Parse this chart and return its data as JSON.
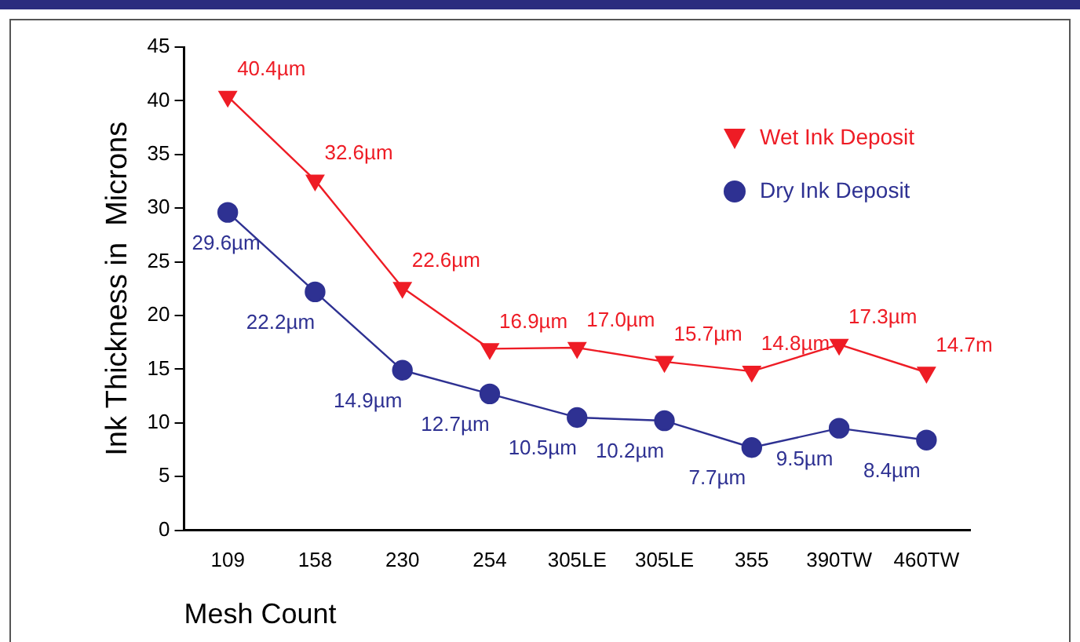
{
  "chart_data": {
    "type": "line",
    "xlabel": "Mesh Count",
    "ylabel": "Ink Thickness in  Microns",
    "categories": [
      "109",
      "158",
      "230",
      "254",
      "305LE",
      "305LE",
      "355",
      "390TW",
      "460TW"
    ],
    "ylim": [
      0,
      45
    ],
    "yticks": [
      0,
      5,
      10,
      15,
      20,
      25,
      30,
      35,
      40,
      45
    ],
    "grid": false,
    "legend": "top right",
    "line_style": "solid",
    "series": [
      {
        "name": "Wet Ink Deposit",
        "color": "#ee1c25",
        "marker": "triangle",
        "values": [
          40.4,
          32.6,
          22.6,
          16.9,
          17.0,
          15.7,
          14.8,
          17.3,
          14.7
        ],
        "value_labels": [
          "40.4µm",
          "32.6µm",
          "22.6µm",
          "16.9µm",
          "17.0µm",
          "15.7µm",
          "14.8µm",
          "17.3µm",
          "14.7m"
        ]
      },
      {
        "name": "Dry Ink Deposit",
        "color": "#2e3192",
        "marker": "circle",
        "values": [
          29.6,
          22.2,
          14.9,
          12.7,
          10.5,
          10.2,
          7.7,
          9.5,
          8.4
        ],
        "value_labels": [
          "29.6µm",
          "22.2µm",
          "14.9µm",
          "12.7µm",
          "10.5µm",
          "10.2µm",
          "7.7µm",
          "9.5µm",
          "8.4µm"
        ]
      }
    ]
  }
}
